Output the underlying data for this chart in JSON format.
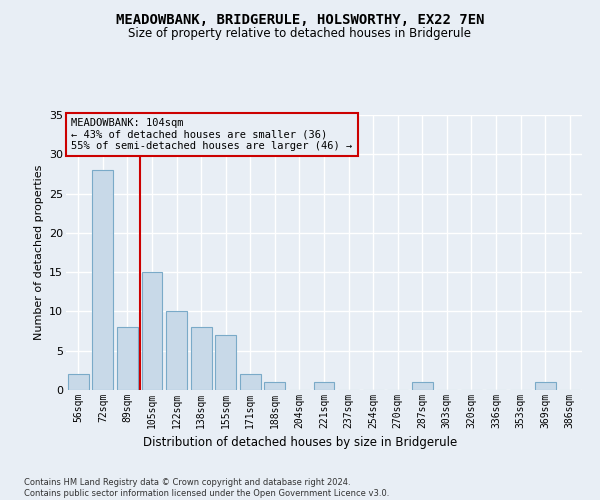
{
  "title": "MEADOWBANK, BRIDGERULE, HOLSWORTHY, EX22 7EN",
  "subtitle": "Size of property relative to detached houses in Bridgerule",
  "xlabel": "Distribution of detached houses by size in Bridgerule",
  "ylabel": "Number of detached properties",
  "bar_labels": [
    "56sqm",
    "72sqm",
    "89sqm",
    "105sqm",
    "122sqm",
    "138sqm",
    "155sqm",
    "171sqm",
    "188sqm",
    "204sqm",
    "221sqm",
    "237sqm",
    "254sqm",
    "270sqm",
    "287sqm",
    "303sqm",
    "320sqm",
    "336sqm",
    "353sqm",
    "369sqm",
    "386sqm"
  ],
  "bar_values": [
    2,
    28,
    8,
    15,
    10,
    8,
    7,
    2,
    1,
    0,
    1,
    0,
    0,
    0,
    1,
    0,
    0,
    0,
    0,
    1,
    0
  ],
  "bar_color": "#c8d9e8",
  "bar_edgecolor": "#7aaac8",
  "ylim": [
    0,
    35
  ],
  "yticks": [
    0,
    5,
    10,
    15,
    20,
    25,
    30,
    35
  ],
  "vline_bar_index": 2.5,
  "vline_color": "#cc0000",
  "annotation_text": "MEADOWBANK: 104sqm\n← 43% of detached houses are smaller (36)\n55% of semi-detached houses are larger (46) →",
  "annotation_box_edgecolor": "#cc0000",
  "bg_color": "#e8eef5",
  "grid_color": "#ffffff",
  "footer": "Contains HM Land Registry data © Crown copyright and database right 2024.\nContains public sector information licensed under the Open Government Licence v3.0."
}
